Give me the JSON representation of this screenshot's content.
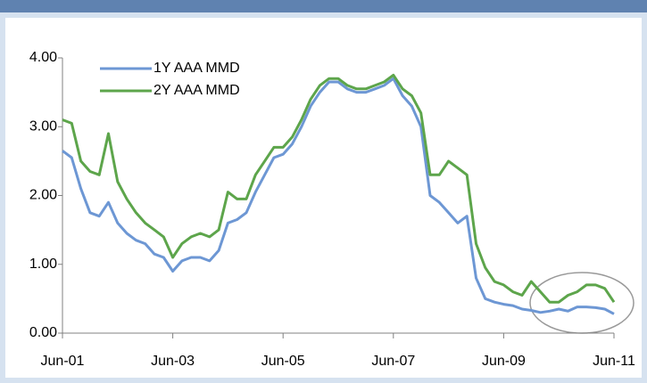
{
  "chart_data": {
    "type": "line",
    "x": [
      "Jun-01",
      "Aug-01",
      "Oct-01",
      "Dec-01",
      "Feb-02",
      "Apr-02",
      "Jun-02",
      "Aug-02",
      "Oct-02",
      "Dec-02",
      "Feb-03",
      "Apr-03",
      "Jun-03",
      "Aug-03",
      "Oct-03",
      "Dec-03",
      "Feb-04",
      "Apr-04",
      "Jun-04",
      "Aug-04",
      "Oct-04",
      "Dec-04",
      "Feb-05",
      "Apr-05",
      "Jun-05",
      "Aug-05",
      "Oct-05",
      "Dec-05",
      "Feb-06",
      "Apr-06",
      "Jun-06",
      "Aug-06",
      "Oct-06",
      "Dec-06",
      "Feb-07",
      "Apr-07",
      "Jun-07",
      "Aug-07",
      "Oct-07",
      "Dec-07",
      "Feb-08",
      "Apr-08",
      "Jun-08",
      "Aug-08",
      "Oct-08",
      "Dec-08",
      "Feb-09",
      "Apr-09",
      "Jun-09",
      "Aug-09",
      "Oct-09",
      "Dec-09",
      "Feb-10",
      "Apr-10",
      "Jun-10",
      "Aug-10",
      "Oct-10",
      "Dec-10",
      "Feb-11",
      "Apr-11",
      "Jun-11"
    ],
    "series": [
      {
        "name": "1Y AAA MMD",
        "color": "#6d97d4",
        "values": [
          2.65,
          2.55,
          2.1,
          1.75,
          1.7,
          1.9,
          1.6,
          1.45,
          1.35,
          1.3,
          1.15,
          1.1,
          0.9,
          1.05,
          1.1,
          1.1,
          1.05,
          1.2,
          1.6,
          1.65,
          1.75,
          2.05,
          2.3,
          2.55,
          2.6,
          2.75,
          3.0,
          3.3,
          3.5,
          3.65,
          3.65,
          3.55,
          3.5,
          3.5,
          3.55,
          3.6,
          3.7,
          3.45,
          3.3,
          3.0,
          2.0,
          1.9,
          1.75,
          1.6,
          1.7,
          0.8,
          0.5,
          0.45,
          0.42,
          0.4,
          0.35,
          0.33,
          0.3,
          0.32,
          0.35,
          0.32,
          0.38,
          0.38,
          0.37,
          0.35,
          0.28
        ]
      },
      {
        "name": "2Y AAA MMD",
        "color": "#5da54b",
        "values": [
          3.1,
          3.05,
          2.5,
          2.35,
          2.3,
          2.9,
          2.2,
          1.95,
          1.75,
          1.6,
          1.5,
          1.4,
          1.1,
          1.3,
          1.4,
          1.45,
          1.4,
          1.5,
          2.05,
          1.95,
          1.95,
          2.3,
          2.5,
          2.7,
          2.7,
          2.85,
          3.1,
          3.4,
          3.6,
          3.7,
          3.7,
          3.6,
          3.55,
          3.55,
          3.6,
          3.65,
          3.75,
          3.55,
          3.45,
          3.2,
          2.3,
          2.3,
          2.5,
          2.4,
          2.3,
          1.3,
          0.95,
          0.75,
          0.7,
          0.6,
          0.55,
          0.75,
          0.6,
          0.45,
          0.45,
          0.55,
          0.6,
          0.7,
          0.7,
          0.65,
          0.45
        ]
      }
    ],
    "xticks": [
      "Jun-01",
      "Jun-03",
      "Jun-05",
      "Jun-07",
      "Jun-09",
      "Jun-11"
    ],
    "ylim": [
      0,
      4
    ],
    "yticks": [
      {
        "value": 0,
        "label": "0.00"
      },
      {
        "value": 1,
        "label": "1.00"
      },
      {
        "value": 2,
        "label": "2.00"
      },
      {
        "value": 3,
        "label": "3.00"
      },
      {
        "value": 4,
        "label": "4.00"
      }
    ],
    "legend": "top-left"
  }
}
